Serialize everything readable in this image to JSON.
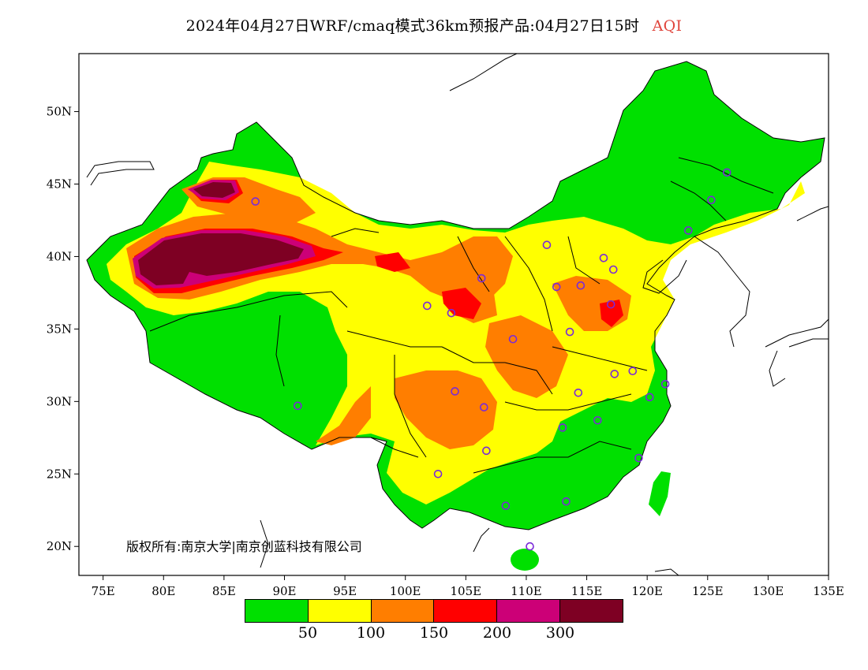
{
  "title": {
    "main": "2024年04月27日WRF/cmaq模式36km预报产品:04月27日15时",
    "pollutant": "AQI"
  },
  "copyright": "版权所有:南京大学|南京创蓝科技有限公司",
  "chart_data": {
    "type": "heatmap",
    "x_ticks": [
      "75E",
      "80E",
      "85E",
      "90E",
      "95E",
      "100E",
      "105E",
      "110E",
      "115E",
      "120E",
      "125E",
      "130E",
      "135E"
    ],
    "y_ticks": [
      "50N",
      "45N",
      "40N",
      "35N",
      "30N",
      "25N",
      "20N"
    ],
    "xlim": [
      73,
      135
    ],
    "ylim": [
      18,
      54
    ],
    "legend": {
      "levels": [
        "50",
        "100",
        "150",
        "200",
        "300"
      ],
      "colors": [
        "#00e000",
        "#ffff00",
        "#ff7e00",
        "#ff0000",
        "#cc0077",
        "#7e0023"
      ]
    },
    "stations": [
      [
        87.6,
        43.8
      ],
      [
        91.1,
        29.7
      ],
      [
        101.8,
        36.6
      ],
      [
        103.8,
        36.1
      ],
      [
        106.3,
        38.5
      ],
      [
        104.1,
        30.7
      ],
      [
        106.5,
        29.6
      ],
      [
        102.7,
        25.0
      ],
      [
        106.7,
        26.6
      ],
      [
        108.9,
        34.3
      ],
      [
        111.7,
        40.8
      ],
      [
        112.5,
        37.9
      ],
      [
        114.5,
        38.0
      ],
      [
        116.4,
        39.9
      ],
      [
        117.2,
        39.1
      ],
      [
        117.0,
        36.7
      ],
      [
        113.6,
        34.8
      ],
      [
        114.3,
        30.6
      ],
      [
        113.0,
        28.2
      ],
      [
        115.9,
        28.7
      ],
      [
        117.3,
        31.9
      ],
      [
        118.8,
        32.1
      ],
      [
        120.2,
        30.3
      ],
      [
        121.5,
        31.2
      ],
      [
        119.3,
        26.1
      ],
      [
        113.3,
        23.1
      ],
      [
        108.3,
        22.8
      ],
      [
        110.3,
        20.0
      ],
      [
        123.4,
        41.8
      ],
      [
        125.3,
        43.9
      ],
      [
        126.6,
        45.8
      ]
    ]
  }
}
